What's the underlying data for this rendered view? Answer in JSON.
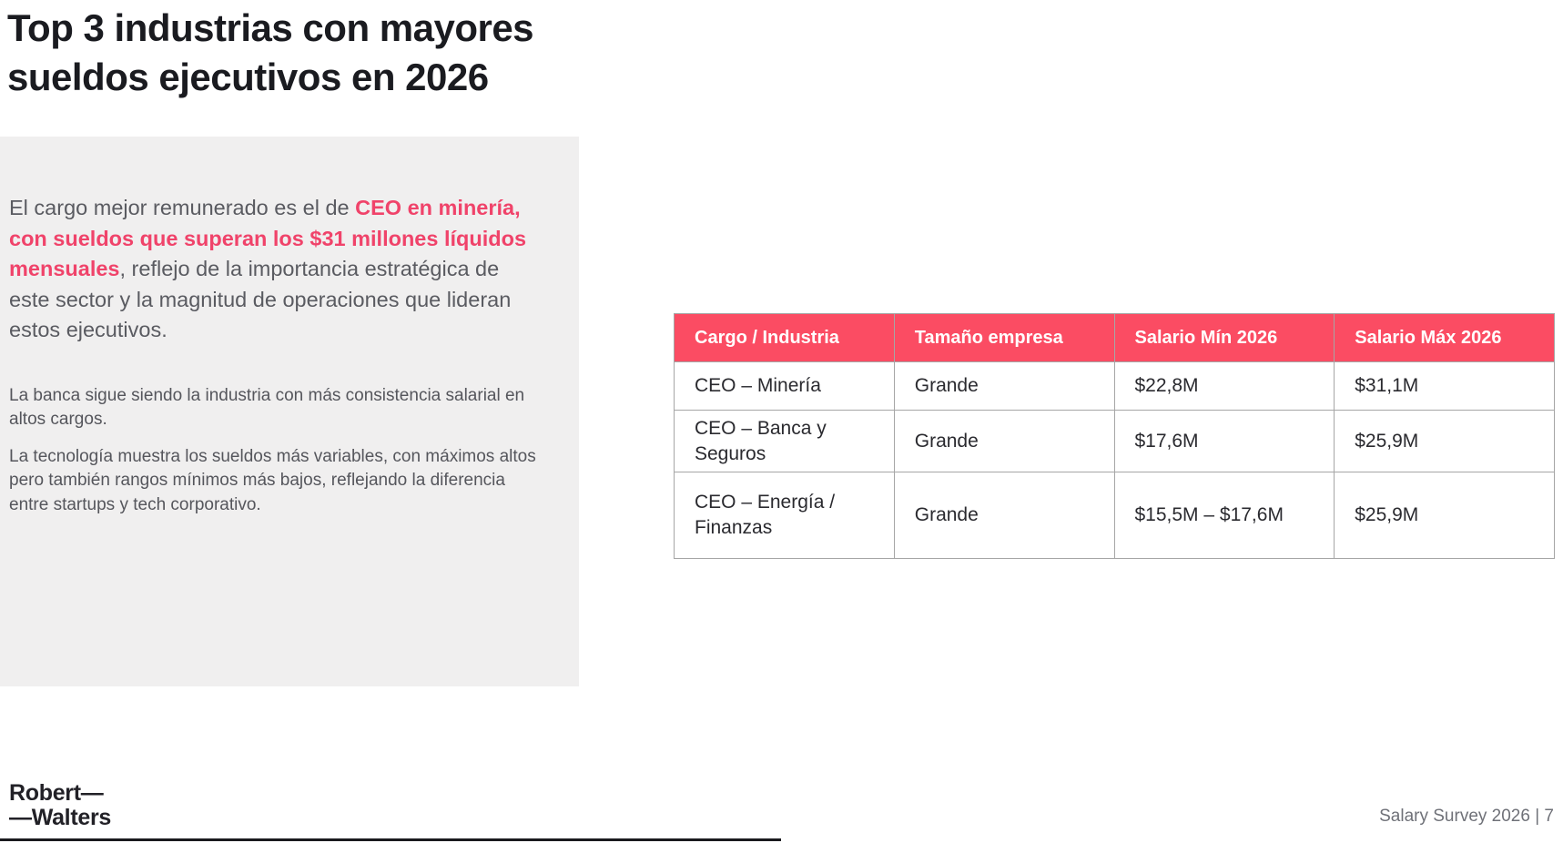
{
  "page": {
    "title_line1": "Top 3 industrias con mayores",
    "title_line2": "sueldos ejecutivos en 2026",
    "footer_label": "Salary Survey 2026 | 7"
  },
  "logo": {
    "line1": "Robert—",
    "line2": "—Walters"
  },
  "panel": {
    "intro_prefix": "El cargo mejor remunerado es el de ",
    "intro_highlight": "CEO en minería, con sueldos que superan los $31 millones líquidos mensuales",
    "intro_suffix": ", reflejo de la importancia estratégica de este sector y la magnitud de operaciones que lideran estos ejecutivos.",
    "note_banking": "La banca sigue siendo la industria con más consistencia salarial en altos cargos.",
    "note_tech": "La tecnología muestra los sueldos más variables, con máximos altos pero también rangos mínimos más bajos, reflejando la diferencia entre startups y tech corporativo."
  },
  "table": {
    "columns": [
      "Cargo / Industria",
      "Tamaño empresa",
      "Salario Mín 2026",
      "Salario Máx 2026"
    ],
    "rows": [
      {
        "cells": [
          "CEO – Minería",
          "Grande",
          "$22,8M",
          "$31,1M"
        ]
      },
      {
        "cells": [
          "CEO – Banca y Seguros",
          "Grande",
          "$17,6M",
          "$25,9M"
        ]
      },
      {
        "cells": [
          "CEO – Energía / Finanzas",
          "Grande",
          "$15,5M – $17,6M",
          "$25,9M"
        ]
      }
    ]
  },
  "colors": {
    "accent_pink_header": "#fb4c63",
    "highlight_text_pink": "#f0436a",
    "panel_background": "#f0efef",
    "title_dark": "#1a1b20",
    "body_gray": "#5a5b61",
    "table_border_gray": "#a6a6a6"
  }
}
